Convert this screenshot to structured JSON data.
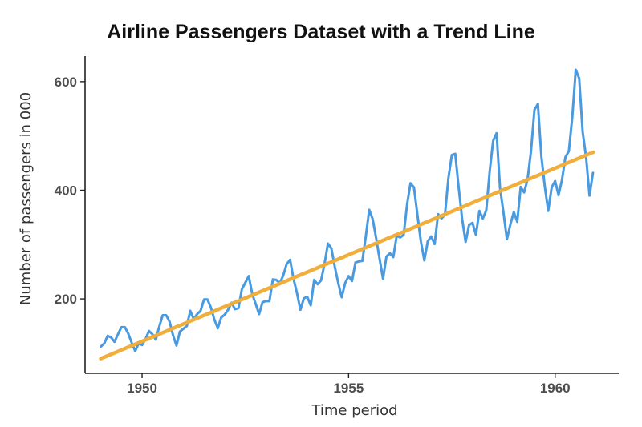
{
  "chart_data": {
    "type": "line",
    "title": "Airline Passengers Dataset with a Trend Line",
    "xlabel": "Time period",
    "ylabel": "Number of passengers in 000",
    "xlim": [
      1948.62,
      1961.54
    ],
    "ylim": [
      63,
      647
    ],
    "x_ticks": [
      1950,
      1955,
      1960
    ],
    "x_tick_labels": [
      "1950",
      "1955",
      "1960"
    ],
    "y_ticks": [
      200,
      400,
      600
    ],
    "y_tick_labels": [
      "200",
      "400",
      "600"
    ],
    "grid": false,
    "legend": "none",
    "x_start": 1949.0,
    "x_step": 0.08333,
    "series": [
      {
        "color": "#4a9ae0",
        "values": [
          112,
          118,
          132,
          129,
          121,
          135,
          148,
          148,
          136,
          119,
          104,
          118,
          115,
          126,
          141,
          135,
          125,
          149,
          170,
          170,
          158,
          133,
          114,
          140,
          145,
          150,
          178,
          163,
          172,
          178,
          199,
          199,
          184,
          162,
          146,
          166,
          171,
          180,
          193,
          181,
          183,
          218,
          230,
          242,
          209,
          191,
          172,
          194,
          196,
          196,
          236,
          235,
          229,
          243,
          264,
          272,
          237,
          211,
          180,
          201,
          204,
          188,
          235,
          227,
          234,
          264,
          302,
          293,
          259,
          229,
          203,
          229,
          242,
          233,
          267,
          269,
          270,
          315,
          364,
          347,
          312,
          274,
          237,
          278,
          284,
          277,
          317,
          313,
          318,
          374,
          413,
          405,
          355,
          306,
          271,
          306,
          315,
          301,
          356,
          348,
          355,
          422,
          465,
          467,
          404,
          347,
          305,
          336,
          340,
          318,
          362,
          348,
          363,
          435,
          491,
          505,
          404,
          359,
          310,
          337,
          360,
          342,
          406,
          396,
          420,
          472,
          548,
          559,
          463,
          407,
          362,
          405,
          417,
          391,
          419,
          461,
          472,
          535,
          622,
          606,
          508,
          461,
          390,
          432
        ]
      }
    ],
    "trend": {
      "color": "#f0ae3c",
      "x": [
        1949.0,
        1960.92
      ],
      "y": [
        90,
        470
      ]
    }
  }
}
